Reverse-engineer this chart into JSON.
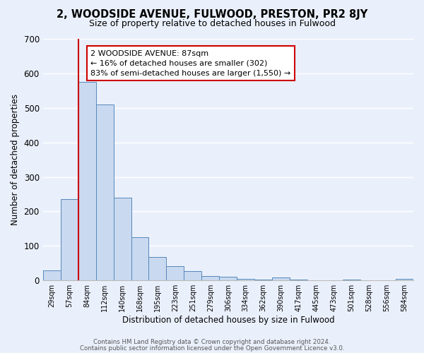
{
  "title": "2, WOODSIDE AVENUE, FULWOOD, PRESTON, PR2 8JY",
  "subtitle": "Size of property relative to detached houses in Fulwood",
  "xlabel": "Distribution of detached houses by size in Fulwood",
  "ylabel": "Number of detached properties",
  "bin_labels": [
    "29sqm",
    "57sqm",
    "84sqm",
    "112sqm",
    "140sqm",
    "168sqm",
    "195sqm",
    "223sqm",
    "251sqm",
    "279sqm",
    "306sqm",
    "334sqm",
    "362sqm",
    "390sqm",
    "417sqm",
    "445sqm",
    "473sqm",
    "501sqm",
    "528sqm",
    "556sqm",
    "584sqm"
  ],
  "bar_heights": [
    30,
    235,
    575,
    510,
    240,
    125,
    67,
    42,
    28,
    13,
    10,
    5,
    3,
    8,
    3,
    0,
    0,
    3,
    0,
    0,
    5
  ],
  "bar_color": "#c9d9f0",
  "bar_edge_color": "#5588bb",
  "vline_color": "#cc0000",
  "annotation_text": "2 WOODSIDE AVENUE: 87sqm\n← 16% of detached houses are smaller (302)\n83% of semi-detached houses are larger (1,550) →",
  "annotation_box_color": "#ffffff",
  "annotation_box_edge": "#cc0000",
  "ylim": [
    0,
    700
  ],
  "yticks": [
    0,
    100,
    200,
    300,
    400,
    500,
    600,
    700
  ],
  "footer_line1": "Contains HM Land Registry data © Crown copyright and database right 2024.",
  "footer_line2": "Contains public sector information licensed under the Open Government Licence v3.0.",
  "background_color": "#eaf0fb",
  "plot_bg_color": "#eaf0fb"
}
